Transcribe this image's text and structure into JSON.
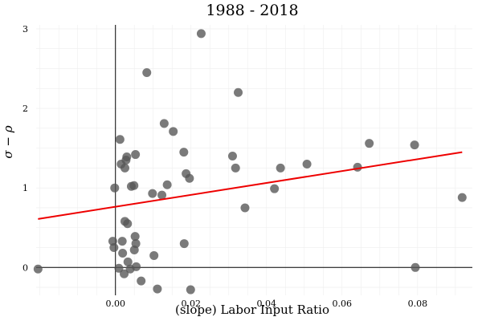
{
  "chart_data": {
    "type": "scatter",
    "title": "1988 - 2018",
    "xlabel": "(slope) Labor Input Ratio",
    "ylabel": "σ − ρ",
    "xlim": [
      -0.021,
      0.0945
    ],
    "ylim": [
      -0.35,
      3.05
    ],
    "x_ticks": [
      0.0,
      0.02,
      0.04,
      0.06,
      0.08
    ],
    "x_tick_labels": [
      "0.00",
      "0.02",
      "0.04",
      "0.06",
      "0.08"
    ],
    "y_ticks": [
      0,
      1,
      2,
      3
    ],
    "y_tick_labels": [
      "0",
      "1",
      "2",
      "3"
    ],
    "grid": true,
    "reference_lines": {
      "x": 0,
      "y": 0
    },
    "colors": {
      "points": "#555555",
      "fit_line": "#ee0000",
      "grid": "#eeeeee",
      "axes": "#000000"
    },
    "points": [
      {
        "x": -0.0205,
        "y": -0.02
      },
      {
        "x": -0.0007,
        "y": 0.33
      },
      {
        "x": -0.0004,
        "y": 0.25
      },
      {
        "x": -0.0002,
        "y": 1.0
      },
      {
        "x": 0.0009,
        "y": -0.01
      },
      {
        "x": 0.0012,
        "y": 1.61
      },
      {
        "x": 0.0015,
        "y": 1.3
      },
      {
        "x": 0.0018,
        "y": 0.33
      },
      {
        "x": 0.0019,
        "y": 0.18
      },
      {
        "x": 0.0023,
        "y": -0.08
      },
      {
        "x": 0.0025,
        "y": 1.25
      },
      {
        "x": 0.0028,
        "y": 1.35
      },
      {
        "x": 0.003,
        "y": 1.39
      },
      {
        "x": 0.0025,
        "y": 0.58
      },
      {
        "x": 0.0032,
        "y": 0.55
      },
      {
        "x": 0.0033,
        "y": 0.07
      },
      {
        "x": 0.0039,
        "y": -0.02
      },
      {
        "x": 0.0042,
        "y": 1.02
      },
      {
        "x": 0.0049,
        "y": 1.03
      },
      {
        "x": 0.005,
        "y": 0.22
      },
      {
        "x": 0.0052,
        "y": 0.39
      },
      {
        "x": 0.0054,
        "y": 0.3
      },
      {
        "x": 0.0053,
        "y": 1.42
      },
      {
        "x": 0.0055,
        "y": 0.01
      },
      {
        "x": 0.0068,
        "y": -0.17
      },
      {
        "x": 0.0083,
        "y": 2.45
      },
      {
        "x": 0.0098,
        "y": 0.93
      },
      {
        "x": 0.0102,
        "y": 0.15
      },
      {
        "x": 0.0111,
        "y": -0.27
      },
      {
        "x": 0.0123,
        "y": 0.91
      },
      {
        "x": 0.0129,
        "y": 1.81
      },
      {
        "x": 0.0137,
        "y": 1.04
      },
      {
        "x": 0.0153,
        "y": 1.71
      },
      {
        "x": 0.0181,
        "y": 1.45
      },
      {
        "x": 0.0182,
        "y": 0.3
      },
      {
        "x": 0.0187,
        "y": 1.18
      },
      {
        "x": 0.0196,
        "y": 1.12
      },
      {
        "x": 0.0199,
        "y": -0.28
      },
      {
        "x": 0.0227,
        "y": 2.94
      },
      {
        "x": 0.031,
        "y": 1.4
      },
      {
        "x": 0.0318,
        "y": 1.25
      },
      {
        "x": 0.0325,
        "y": 2.2
      },
      {
        "x": 0.0343,
        "y": 0.75
      },
      {
        "x": 0.0421,
        "y": 0.99
      },
      {
        "x": 0.0437,
        "y": 1.25
      },
      {
        "x": 0.0507,
        "y": 1.3
      },
      {
        "x": 0.0641,
        "y": 1.26
      },
      {
        "x": 0.0672,
        "y": 1.56
      },
      {
        "x": 0.0792,
        "y": 1.54
      },
      {
        "x": 0.0794,
        "y": 0.0
      },
      {
        "x": 0.0918,
        "y": 0.88
      }
    ],
    "fit_line": {
      "x": [
        -0.0205,
        0.0918
      ],
      "y": [
        0.61,
        1.45
      ]
    }
  }
}
